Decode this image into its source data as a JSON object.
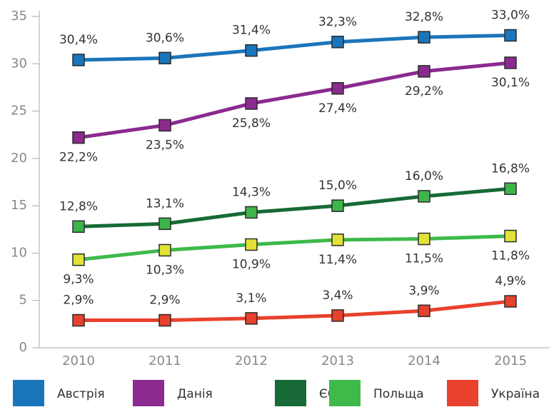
{
  "chart_data": {
    "type": "line",
    "categories": [
      "2010",
      "2011",
      "2012",
      "2013",
      "2014",
      "2015"
    ],
    "ylim": [
      0,
      35
    ],
    "yticks": [
      0,
      5,
      10,
      15,
      20,
      25,
      30,
      35
    ],
    "series": [
      {
        "name": "Австрія",
        "color": "#1b75bb",
        "marker_color": "#1b75bb",
        "values": [
          30.4,
          30.6,
          31.4,
          32.3,
          32.8,
          33.0
        ],
        "value_labels": [
          "30,4%",
          "30,6%",
          "31,4%",
          "32,3%",
          "32,8%",
          "33,0%"
        ]
      },
      {
        "name": "Данія",
        "color": "#8b2a8f",
        "marker_color": "#8b2a8f",
        "values": [
          22.2,
          23.5,
          25.8,
          27.4,
          29.2,
          30.1
        ],
        "value_labels": [
          "22,2%",
          "23,5%",
          "25,8%",
          "27,4%",
          "29,2%",
          "30,1%"
        ]
      },
      {
        "name": "ЄС",
        "color": "#176a35",
        "marker_color": "#3db54b",
        "values": [
          12.8,
          13.1,
          14.3,
          15.0,
          16.0,
          16.8
        ],
        "value_labels": [
          "12,8%",
          "13,1%",
          "14,3%",
          "15,0%",
          "16,0%",
          "16,8%"
        ]
      },
      {
        "name": "Польща",
        "color": "#3eb94a",
        "marker_color": "#e2e236",
        "values": [
          9.3,
          10.3,
          10.9,
          11.4,
          11.5,
          11.8
        ],
        "value_labels": [
          "9,3%",
          "10,3%",
          "10,9%",
          "11,4%",
          "11,5%",
          "11,8%"
        ]
      },
      {
        "name": "Україна",
        "color": "#e8412d",
        "marker_color": "#e8412d",
        "values": [
          2.9,
          2.9,
          3.1,
          3.4,
          3.9,
          4.9
        ],
        "value_labels": [
          "2,9%",
          "2,9%",
          "3,1%",
          "3,4%",
          "3,9%",
          "4,9%"
        ]
      }
    ]
  }
}
